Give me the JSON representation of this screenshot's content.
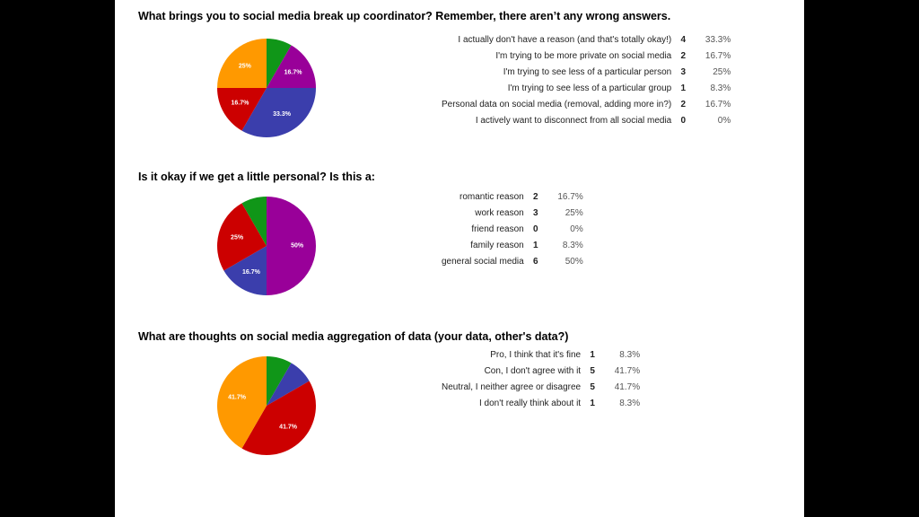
{
  "colors": {
    "orange": "#ff9900",
    "green": "#109618",
    "purple": "#990099",
    "blue": "#3b3eac",
    "red": "#cc0000"
  },
  "chart_data": [
    {
      "type": "pie",
      "title": "What brings you to social media break up coordinator? Remember, there aren’t any wrong answers.",
      "categories": [
        "I actually don't have a reason (and that's totally okay!)",
        "I'm trying to be more private on social media",
        "I'm trying to see less of a particular person",
        "I'm trying to see less of a particular group",
        "Personal data on social media (removal, adding more in?)",
        "I actively want to disconnect from all social media"
      ],
      "counts": [
        "4",
        "2",
        "3",
        "1",
        "2",
        "0"
      ],
      "values": [
        4,
        2,
        3,
        1,
        2,
        0
      ],
      "percents": [
        "33.3%",
        "16.7%",
        "25%",
        "8.3%",
        "16.7%",
        "0%"
      ],
      "slices": [
        {
          "category_index": 3,
          "value": 1,
          "color": "green",
          "label": ""
        },
        {
          "category_index": 1,
          "value": 2,
          "color": "purple",
          "label": "16.7%"
        },
        {
          "category_index": 0,
          "value": 4,
          "color": "blue",
          "label": "33.3%"
        },
        {
          "category_index": 4,
          "value": 2,
          "color": "red",
          "label": "16.7%"
        },
        {
          "category_index": 2,
          "value": 3,
          "color": "orange",
          "label": "25%"
        }
      ]
    },
    {
      "type": "pie",
      "title": "Is it okay if we get a little personal? Is this a:",
      "categories": [
        "romantic reason",
        "work reason",
        "friend reason",
        "family reason",
        "general social media"
      ],
      "counts": [
        "2",
        "3",
        "0",
        "1",
        "6"
      ],
      "values": [
        2,
        3,
        0,
        1,
        6
      ],
      "percents": [
        "16.7%",
        "25%",
        "0%",
        "8.3%",
        "50%"
      ],
      "slices": [
        {
          "category_index": 4,
          "value": 6,
          "color": "purple",
          "label": "50%"
        },
        {
          "category_index": 0,
          "value": 2,
          "color": "blue",
          "label": "16.7%"
        },
        {
          "category_index": 1,
          "value": 3,
          "color": "red",
          "label": "25%"
        },
        {
          "category_index": 3,
          "value": 1,
          "color": "green",
          "label": ""
        }
      ]
    },
    {
      "type": "pie",
      "title": "What are thoughts on social media aggregation of data (your data, other's data?)",
      "categories": [
        "Pro, I think that it's fine",
        "Con, I don't agree with it",
        "Neutral, I neither agree or disagree",
        "I don't really think about it"
      ],
      "counts": [
        "1",
        "5",
        "5",
        "1"
      ],
      "values": [
        1,
        5,
        5,
        1
      ],
      "percents": [
        "8.3%",
        "41.7%",
        "41.7%",
        "8.3%"
      ],
      "slices": [
        {
          "category_index": 0,
          "value": 1,
          "color": "green",
          "label": ""
        },
        {
          "category_index": 3,
          "value": 1,
          "color": "blue",
          "label": ""
        },
        {
          "category_index": 1,
          "value": 5,
          "color": "red",
          "label": "41.7%"
        },
        {
          "category_index": 2,
          "value": 5,
          "color": "orange",
          "label": "41.7%"
        }
      ]
    }
  ]
}
